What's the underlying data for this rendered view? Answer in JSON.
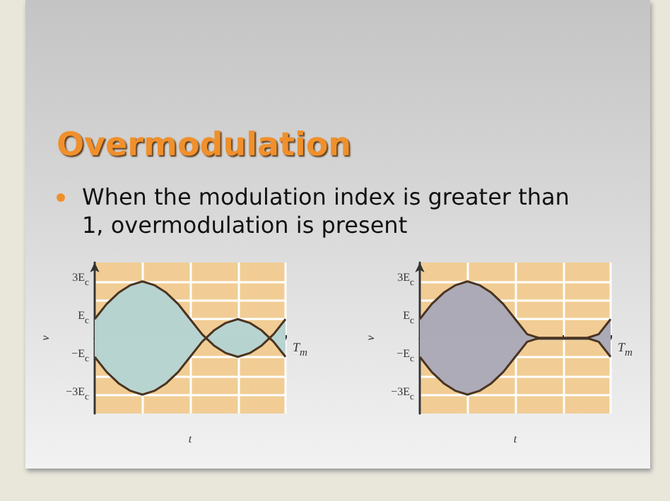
{
  "chart_data": [
    {
      "type": "other",
      "title": "Overmodulation",
      "annotations": [
        "When the modulation index is greater than 1, overmodulation is present"
      ]
    },
    {
      "type": "area",
      "xlabel": "t",
      "ylabel": "v",
      "categories": [
        null,
        null,
        null,
        null,
        null,
        null,
        null,
        null,
        null,
        null,
        null,
        null,
        null,
        null,
        null,
        null,
        null
      ],
      "ylim": [
        -4,
        4
      ],
      "yticks": [
        {
          "value": -3,
          "label": "−3E$_{c}$"
        },
        {
          "value": -2,
          "label": null
        },
        {
          "value": -1,
          "label": "−E$_{c}$"
        },
        {
          "value": 0,
          "label": null
        },
        {
          "value": 1,
          "label": "E$_{c}$"
        },
        {
          "value": 2,
          "label": null
        },
        {
          "value": 3,
          "label": "3E$_{c}$"
        }
      ],
      "grid": true,
      "tick_labels": "y",
      "annotations": [
        "T$_{m}$"
      ],
      "series": [
        {
          "color": "#b7d3cf",
          "values": [
            1,
            1.8,
            2.4,
            2.8,
            3,
            2.8,
            2.4,
            1.8,
            1,
            0.2,
            -0.4,
            -0.8,
            -1,
            -0.8,
            -0.4,
            0.2,
            1
          ]
        },
        {
          "color": "#b8d4d0",
          "values": [
            -1,
            -1.8,
            -2.4,
            -2.8,
            -3,
            -2.8,
            -2.4,
            -1.8,
            -1,
            -0.2,
            0.4,
            0.8,
            1,
            0.8,
            0.4,
            -0.2,
            -1
          ]
        }
      ]
    },
    {
      "type": "area",
      "xlabel": "t",
      "ylabel": "v",
      "categories": [
        null,
        null,
        null,
        null,
        null,
        null,
        null,
        null,
        null,
        null,
        null,
        null,
        null,
        null,
        null,
        null,
        null
      ],
      "ylim": [
        -4,
        4
      ],
      "yticks": [
        {
          "value": -3,
          "label": "−3E$_{c}$"
        },
        {
          "value": -2,
          "label": null
        },
        {
          "value": -1,
          "label": "−E$_{c}$"
        },
        {
          "value": 0,
          "label": null
        },
        {
          "value": 1,
          "label": "E$_{c}$"
        },
        {
          "value": 2,
          "label": null
        },
        {
          "value": 3,
          "label": "3E$_{c}$"
        }
      ],
      "grid": true,
      "tick_labels": "y",
      "annotations": [
        "T$_{m}$"
      ],
      "series": [
        {
          "color": "#abaab6",
          "values": [
            1,
            1.8,
            2.4,
            2.8,
            3,
            2.8,
            2.4,
            1.8,
            1,
            0.2,
            0,
            0,
            0,
            0,
            0,
            0.2,
            1
          ]
        },
        {
          "color": "#acabb7",
          "values": [
            -1,
            -1.8,
            -2.4,
            -2.8,
            -3,
            -2.8,
            -2.4,
            -1.8,
            -1,
            -0.2,
            0,
            0,
            0,
            0,
            0,
            -0.2,
            -1
          ]
        }
      ]
    }
  ]
}
